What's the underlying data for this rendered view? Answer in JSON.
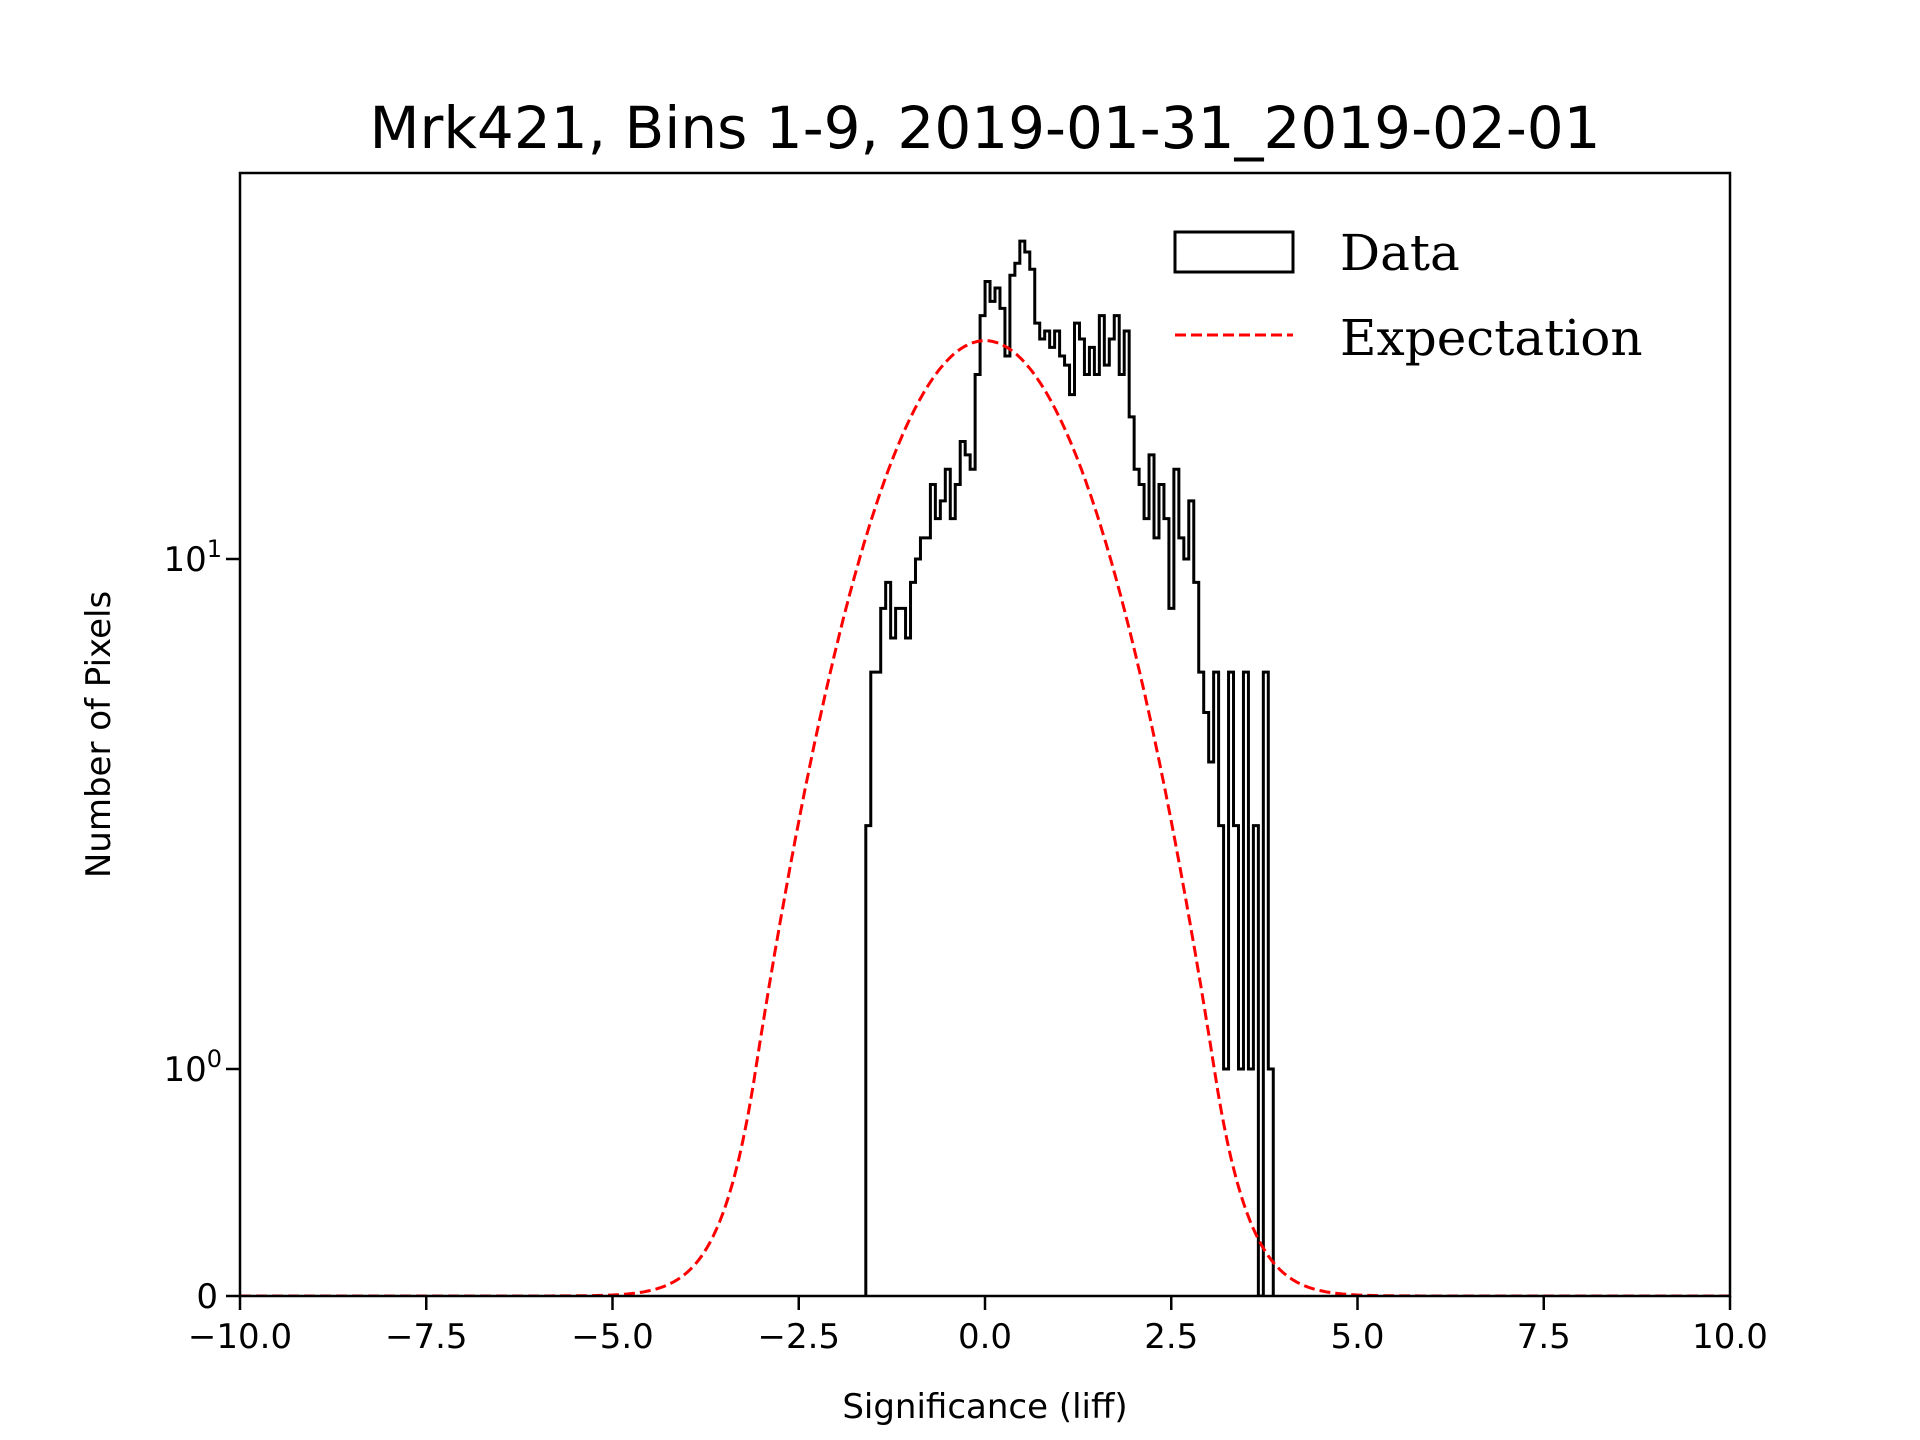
{
  "chart_data": {
    "type": "histogram",
    "title": "Mrk421, Bins 1-9, 2019-01-31_2019-02-01",
    "xlabel": "Significance (liff)",
    "ylabel": "Number of Pixels",
    "xlim": [
      -10.0,
      10.0
    ],
    "yscale": "symlog",
    "ylim": [
      0,
      57
    ],
    "x_ticks": [
      -10.0,
      -7.5,
      -5.0,
      -2.5,
      0.0,
      2.5,
      5.0,
      7.5,
      10.0
    ],
    "x_tick_labels": [
      "−10.0",
      "−7.5",
      "−5.0",
      "−2.5",
      "0.0",
      "2.5",
      "5.0",
      "7.5",
      "10.0"
    ],
    "y_ticks": [
      0,
      1,
      10
    ],
    "y_tick_labels": [
      {
        "base": "0",
        "exp": ""
      },
      {
        "base": "10",
        "exp": "0"
      },
      {
        "base": "10",
        "exp": "1"
      }
    ],
    "grid": false,
    "legend": {
      "position": "top-right",
      "entries": [
        {
          "label": "Data",
          "style": "step-outline",
          "color": "#000000"
        },
        {
          "label": "Expectation",
          "style": "dashed-line",
          "color": "#ff0000"
        }
      ]
    },
    "series": [
      {
        "name": "Data",
        "type": "step",
        "color": "#000000",
        "bin_width": 0.0667,
        "bin_start": -1.6,
        "counts": [
          3,
          6,
          6,
          8,
          9,
          7,
          8,
          8,
          7,
          9,
          10,
          11,
          11,
          14,
          12,
          13,
          15,
          12,
          14,
          17,
          16,
          15,
          23,
          30,
          35,
          32,
          34,
          31,
          25,
          36,
          38,
          42,
          40,
          37,
          29,
          27,
          28,
          26,
          28,
          25,
          24,
          21,
          29,
          27,
          23,
          26,
          23,
          30,
          24,
          27,
          30,
          23,
          28,
          19,
          15,
          14,
          12,
          16,
          11,
          14,
          12,
          8,
          15,
          11,
          10,
          13,
          9,
          6,
          5,
          4,
          6,
          3,
          1,
          6,
          3,
          1,
          6,
          1,
          3,
          0,
          6,
          1
        ]
      },
      {
        "name": "Expectation",
        "type": "line",
        "style": "dashed",
        "color": "#ff0000",
        "model": "gaussian",
        "peak": 26.8,
        "mean": 0.0,
        "sigma": 1.2
      }
    ]
  }
}
